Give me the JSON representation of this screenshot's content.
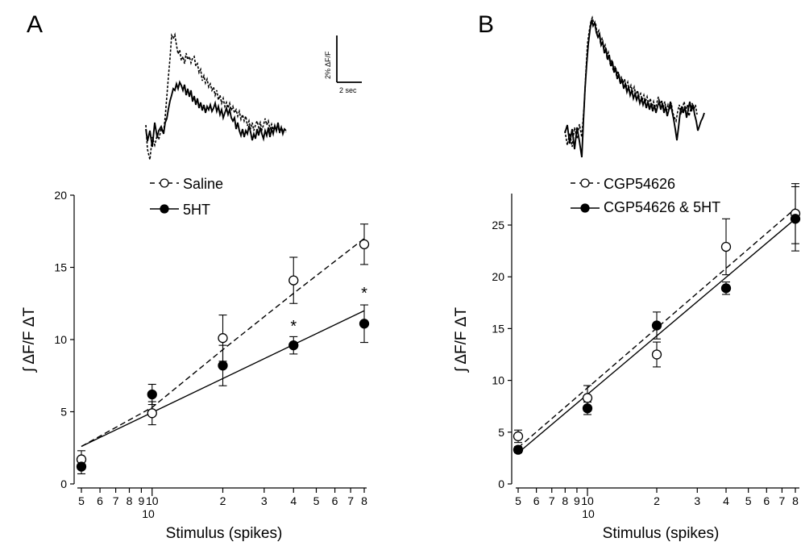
{
  "figure": {
    "panel_labels": [
      "A",
      "B"
    ]
  },
  "scale_bar": {
    "vertical_label": "2% ΔF/F",
    "horizontal_label": "2 sec"
  },
  "chart_data": [
    {
      "panel": "A",
      "type": "scatter",
      "xscale": "log",
      "xlabel": "Stimulus (spikes)",
      "ylabel": "∫ ΔF/F  ΔT",
      "xlim": [
        5,
        80
      ],
      "ylim": [
        0,
        20
      ],
      "yticks": [
        0,
        5,
        10,
        15,
        20
      ],
      "xticks": [
        5,
        6,
        7,
        8,
        9,
        10,
        20,
        30,
        40,
        50,
        60,
        70,
        80
      ],
      "xtick_labels": [
        "5",
        "6",
        "7",
        "8",
        "9",
        "10",
        "2",
        "3",
        "4",
        "5",
        "6",
        "7",
        "8"
      ],
      "xtick_decade_label": "10",
      "legend": [
        "Saline",
        "5HT"
      ],
      "series": [
        {
          "name": "Saline",
          "marker": "open",
          "line": "dashed",
          "x": [
            5,
            10,
            20,
            40,
            80
          ],
          "y": [
            1.7,
            4.9,
            10.1,
            14.1,
            16.6
          ],
          "err": [
            0.6,
            0.8,
            1.6,
            1.6,
            1.4
          ],
          "fit": [
            [
              5,
              2.6
            ],
            [
              10,
              5.3
            ],
            [
              20,
              9.3
            ],
            [
              40,
              13.2
            ],
            [
              80,
              17.0
            ]
          ]
        },
        {
          "name": "5HT",
          "marker": "filled",
          "line": "solid",
          "x": [
            5,
            10,
            20,
            40,
            80
          ],
          "y": [
            1.2,
            6.2,
            8.2,
            9.6,
            11.1
          ],
          "err": [
            0.5,
            0.7,
            1.4,
            0.6,
            1.3
          ],
          "fit": [
            [
              5,
              2.6
            ],
            [
              80,
              12.0
            ]
          ]
        }
      ],
      "annotations": [
        {
          "text": "*",
          "x": 40,
          "y": 11.0
        },
        {
          "text": "*",
          "x": 80,
          "y": 13.3
        }
      ]
    },
    {
      "panel": "B",
      "type": "scatter",
      "xscale": "log",
      "xlabel": "Stimulus (spikes)",
      "ylabel": "∫ ΔF/F  ΔT",
      "xlim": [
        5,
        80
      ],
      "ylim": [
        0,
        28
      ],
      "yticks": [
        0,
        5,
        10,
        15,
        20,
        25
      ],
      "xticks": [
        5,
        6,
        7,
        8,
        9,
        10,
        20,
        30,
        40,
        50,
        60,
        70,
        80
      ],
      "xtick_labels": [
        "5",
        "6",
        "7",
        "8",
        "9",
        "10",
        "2",
        "3",
        "4",
        "5",
        "6",
        "7",
        "8"
      ],
      "xtick_decade_label": "10",
      "legend": [
        "CGP54626",
        "CGP54626 & 5HT"
      ],
      "series": [
        {
          "name": "CGP54626",
          "marker": "open",
          "line": "dashed",
          "x": [
            5,
            10,
            20,
            40,
            80
          ],
          "y": [
            4.6,
            8.3,
            12.5,
            22.9,
            26.1
          ],
          "err": [
            0.6,
            1.2,
            1.2,
            2.7,
            2.9
          ],
          "fit": [
            [
              5,
              3.5
            ],
            [
              80,
              26.6
            ]
          ]
        },
        {
          "name": "CGP54626 & 5HT",
          "marker": "filled",
          "line": "solid",
          "x": [
            5,
            10,
            20,
            40,
            80
          ],
          "y": [
            3.3,
            7.3,
            15.3,
            18.9,
            25.6
          ],
          "err": [
            0.3,
            0.6,
            1.3,
            0.6,
            3.1
          ],
          "fit": [
            [
              5,
              3.0
            ],
            [
              80,
              25.6
            ]
          ]
        }
      ],
      "annotations": []
    }
  ]
}
